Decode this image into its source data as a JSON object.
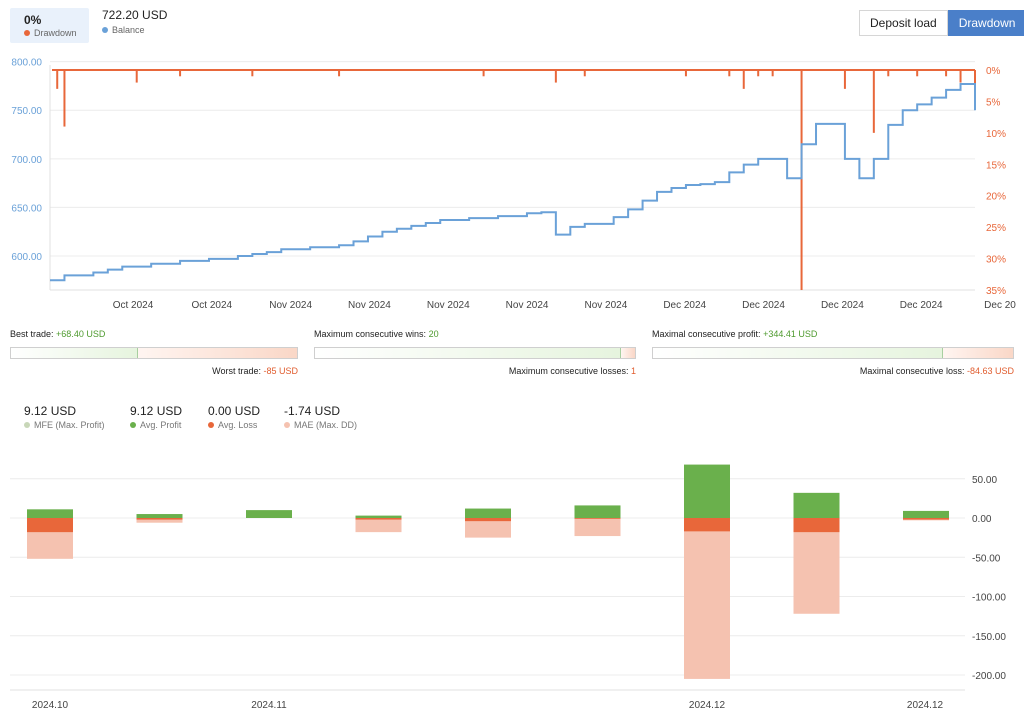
{
  "header": {
    "drawdown_value": "0%",
    "drawdown_label": "Drawdown",
    "balance_value": "722.20 USD",
    "balance_label": "Balance",
    "buttons": [
      "Deposit load",
      "Drawdown"
    ]
  },
  "colors": {
    "balance": "#6aa1d8",
    "drawdown": "#e8673a",
    "mfe": "#c8d7b8",
    "profit": "#6ab04c",
    "loss": "#e8673a",
    "mae": "#f5c2b0"
  },
  "chart_data": [
    {
      "type": "line",
      "series": [
        {
          "name": "Balance",
          "x": [
            0,
            1,
            2,
            3,
            4,
            5,
            6,
            7,
            8,
            9,
            10,
            11,
            12,
            13,
            14,
            15,
            16,
            17,
            18,
            19,
            20,
            21,
            22,
            23,
            24,
            25,
            26,
            27,
            28,
            29,
            30,
            31,
            32,
            33,
            34,
            35,
            36,
            37,
            38,
            39,
            40,
            41,
            42,
            43,
            44,
            45,
            46,
            47,
            48,
            49,
            50,
            51,
            52,
            53,
            54,
            55,
            56,
            57,
            58,
            59,
            60,
            61,
            62,
            63,
            64
          ],
          "values": [
            575,
            580,
            580,
            583,
            586,
            589,
            589,
            592,
            592,
            595,
            595,
            597,
            597,
            600,
            602,
            604,
            607,
            607,
            609,
            609,
            611,
            615,
            620,
            625,
            628,
            631,
            634,
            637,
            637,
            639,
            639,
            641,
            641,
            644,
            645,
            622,
            630,
            633,
            633,
            640,
            648,
            657,
            666,
            670,
            673,
            674,
            676,
            686,
            694,
            700,
            700,
            680,
            715,
            736,
            736,
            700,
            680,
            700,
            735,
            750,
            756,
            763,
            771,
            777,
            750
          ],
          "axis": "left"
        },
        {
          "name": "Drawdown",
          "x": [
            0.5,
            1,
            6,
            9,
            14,
            20,
            30,
            35,
            37,
            44,
            47,
            48,
            49,
            50,
            52,
            55,
            57,
            58,
            60,
            62,
            63,
            64
          ],
          "values": [
            3,
            9,
            2,
            1,
            1,
            1,
            1,
            2,
            1,
            1,
            1,
            3,
            1,
            1,
            35,
            3,
            10,
            1,
            1,
            1,
            2,
            3
          ],
          "axis": "right"
        }
      ],
      "left_axis": {
        "ticks": [
          600.0,
          650.0,
          700.0,
          750.0,
          800.0
        ],
        "tick_labels": [
          "600.00",
          "650.00",
          "700.00",
          "750.00",
          "800.00"
        ],
        "ylim": [
          565,
          812
        ]
      },
      "right_axis": {
        "ticks": [
          0,
          5,
          10,
          15,
          20,
          25,
          30,
          35
        ],
        "tick_labels": [
          "0%",
          "5%",
          "10%",
          "15%",
          "20%",
          "25%",
          "30%",
          "35%"
        ],
        "ylim": [
          0,
          35
        ]
      },
      "x_tick_labels": [
        "Oct 2024",
        "Oct 2024",
        "Nov 2024",
        "Nov 2024",
        "Nov 2024",
        "Nov 2024",
        "Nov 2024",
        "Dec 2024",
        "Dec 2024",
        "Dec 2024",
        "Dec 2024",
        "Dec 20"
      ],
      "grid": true
    },
    {
      "type": "bar",
      "categories": [
        "1",
        "2",
        "3",
        "4",
        "5",
        "6",
        "7",
        "8",
        "9"
      ],
      "series": [
        {
          "name": "MFE (Max. Profit)",
          "values": [
            11,
            5,
            10,
            3,
            12,
            16,
            68,
            32,
            9
          ]
        },
        {
          "name": "Avg. Profit",
          "values": [
            11,
            5,
            10,
            3,
            12,
            16,
            68,
            32,
            9
          ]
        },
        {
          "name": "Avg. Loss",
          "values": [
            -18,
            -2,
            0,
            -2,
            -4,
            -1,
            -17,
            -18,
            -2
          ]
        },
        {
          "name": "MAE (Max. DD)",
          "values": [
            -52,
            -6,
            0,
            -18,
            -25,
            -23,
            -205,
            -122,
            -3
          ]
        }
      ],
      "ylim": [
        -210,
        72
      ],
      "y_tick_labels": [
        "50.00",
        "0.00",
        "-50.00",
        "-100.00",
        "-150.00",
        "-200.00"
      ],
      "x_tick_labels": [
        "2024.10",
        "2024.11",
        "2024.12",
        "2024.12"
      ],
      "grid": true
    }
  ],
  "stats": {
    "best_trade_label": "Best trade:",
    "best_trade_value": "+68.40 USD",
    "worst_trade_label": "Worst trade:",
    "worst_trade_value": "-85 USD",
    "max_consec_wins_label": "Maximum consecutive wins:",
    "max_consec_wins_value": "20",
    "max_consec_losses_label": "Maximum consecutive losses:",
    "max_consec_losses_value": "1",
    "max_consec_profit_label": "Maximal consecutive profit:",
    "max_consec_profit_value": "+344.41 USD",
    "max_consec_loss_label": "Maximal consecutive loss:",
    "max_consec_loss_value": "-84.63 USD",
    "best_worst_ratio": 0.44,
    "wins_losses_ratio": 0.952,
    "profit_loss_ratio": 0.803
  },
  "summary": [
    {
      "value": "9.12 USD",
      "label": "MFE (Max. Profit)"
    },
    {
      "value": "9.12 USD",
      "label": "Avg. Profit"
    },
    {
      "value": "0.00 USD",
      "label": "Avg. Loss"
    },
    {
      "value": "-1.74 USD",
      "label": "MAE (Max. DD)"
    }
  ]
}
